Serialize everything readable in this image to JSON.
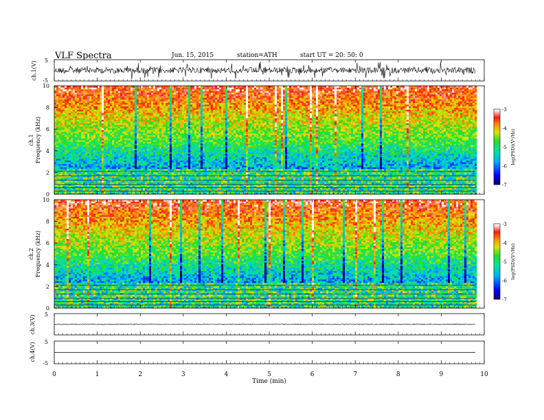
{
  "header": {
    "title": "VLF Spectra",
    "date": "Jun. 15, 2015",
    "station": "station=ATH",
    "start": "start  UT =   20: 50: 0"
  },
  "chart_data": [
    {
      "type": "line",
      "name": "ch1-waveform",
      "ylabel": "ch.1(V)",
      "ylim": [
        -5,
        5
      ],
      "yticks": [
        "5",
        "-5"
      ],
      "description_values": {
        "mean": 0,
        "amplitude_typical": 1.2,
        "amplitude_spikes": 3.5
      }
    },
    {
      "type": "heatmap",
      "name": "ch1-spectrogram",
      "ylabel": "ch.1\nFrequency (kHz)",
      "ylim": [
        0,
        10
      ],
      "yticks": [
        "0",
        "2",
        "4",
        "6",
        "8",
        "10"
      ],
      "colorbar": {
        "label": "log(PSD)(V²/Hz)",
        "range": [
          -7,
          -3
        ],
        "ticks": [
          "-3",
          "-4",
          "-5",
          "-6",
          "-7"
        ]
      }
    },
    {
      "type": "heatmap",
      "name": "ch2-spectrogram",
      "ylabel": "ch.2\nFrequency (kHz)",
      "ylim": [
        0,
        10
      ],
      "yticks": [
        "0",
        "2",
        "4",
        "6",
        "8",
        "10"
      ],
      "colorbar": {
        "label": "log(PSD)(V²/Hz)",
        "range": [
          -7,
          -3
        ],
        "ticks": [
          "-3",
          "-4",
          "-5",
          "-6",
          "-7"
        ]
      }
    },
    {
      "type": "line",
      "name": "ch3-waveform",
      "ylabel": "ch.3(V)",
      "ylim": [
        -5,
        5
      ],
      "yticks": [
        "5"
      ],
      "description_values": {
        "mean": 0,
        "amplitude_typical": 0.05
      }
    },
    {
      "type": "line",
      "name": "ch4-waveform",
      "ylabel": "ch.4(V)",
      "ylim": [
        -5,
        5
      ],
      "yticks": [
        "5",
        "-5"
      ],
      "description_values": {
        "mean": 0,
        "amplitude_typical": 0
      }
    }
  ],
  "xaxis": {
    "label": "Time  (min)",
    "range": [
      0,
      10
    ],
    "ticks": [
      "0",
      "1",
      "2",
      "3",
      "4",
      "5",
      "6",
      "7",
      "8",
      "9",
      "10"
    ],
    "data_end": 9.8
  }
}
